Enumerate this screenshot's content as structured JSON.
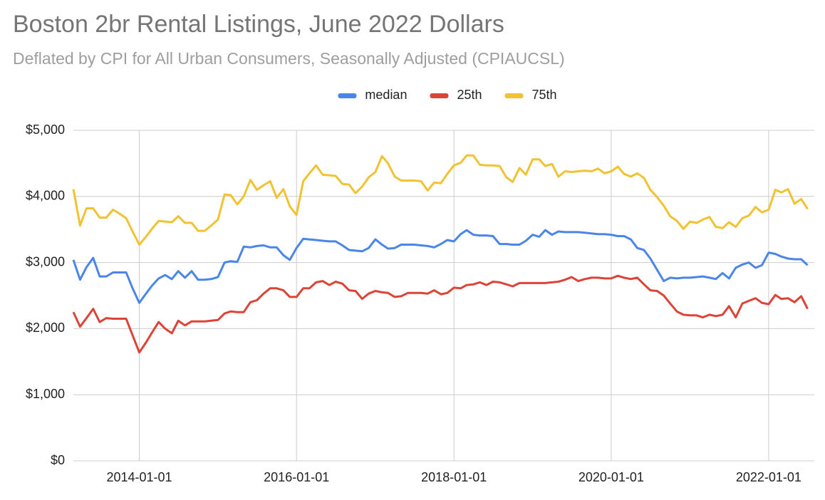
{
  "chart_data": {
    "type": "line",
    "title": "Boston 2br Rental Listings, June 2022 Dollars",
    "subtitle": "Deflated by CPI for All Urban Consumers, Seasonally Adjusted (CPIAUCSL)",
    "x": [
      "2013-03-01",
      "2013-04-01",
      "2013-05-01",
      "2013-06-01",
      "2013-07-01",
      "2013-08-01",
      "2013-09-01",
      "2013-10-01",
      "2013-11-01",
      "2013-12-01",
      "2014-01-01",
      "2014-02-01",
      "2014-03-01",
      "2014-04-01",
      "2014-05-01",
      "2014-06-01",
      "2014-07-01",
      "2014-08-01",
      "2014-09-01",
      "2014-10-01",
      "2014-11-01",
      "2014-12-01",
      "2015-01-01",
      "2015-02-01",
      "2015-03-01",
      "2015-04-01",
      "2015-05-01",
      "2015-06-01",
      "2015-07-01",
      "2015-08-01",
      "2015-09-01",
      "2015-10-01",
      "2015-11-01",
      "2015-12-01",
      "2016-01-01",
      "2016-02-01",
      "2016-03-01",
      "2016-04-01",
      "2016-05-01",
      "2016-06-01",
      "2016-07-01",
      "2016-08-01",
      "2016-09-01",
      "2016-10-01",
      "2016-11-01",
      "2016-12-01",
      "2017-01-01",
      "2017-02-01",
      "2017-03-01",
      "2017-04-01",
      "2017-05-01",
      "2017-06-01",
      "2017-07-01",
      "2017-08-01",
      "2017-09-01",
      "2017-10-01",
      "2017-11-01",
      "2017-12-01",
      "2018-01-01",
      "2018-02-01",
      "2018-03-01",
      "2018-04-01",
      "2018-05-01",
      "2018-06-01",
      "2018-07-01",
      "2018-08-01",
      "2018-09-01",
      "2018-10-01",
      "2018-11-01",
      "2018-12-01",
      "2019-01-01",
      "2019-02-01",
      "2019-03-01",
      "2019-04-01",
      "2019-05-01",
      "2019-06-01",
      "2019-07-01",
      "2019-08-01",
      "2019-09-01",
      "2019-10-01",
      "2019-11-01",
      "2019-12-01",
      "2020-01-01",
      "2020-02-01",
      "2020-03-01",
      "2020-04-01",
      "2020-05-01",
      "2020-06-01",
      "2020-07-01",
      "2020-08-01",
      "2020-09-01",
      "2020-10-01",
      "2020-11-01",
      "2020-12-01",
      "2021-01-01",
      "2021-02-01",
      "2021-03-01",
      "2021-04-01",
      "2021-05-01",
      "2021-06-01",
      "2021-07-01",
      "2021-08-01",
      "2021-09-01",
      "2021-10-01",
      "2021-11-01",
      "2021-12-01",
      "2022-01-01",
      "2022-02-01",
      "2022-03-01",
      "2022-04-01",
      "2022-05-01",
      "2022-06-01",
      "2022-07-01"
    ],
    "series": [
      {
        "name": "median",
        "color": "#4a86e8",
        "values": [
          3040,
          2740,
          2930,
          3070,
          2790,
          2790,
          2850,
          2850,
          2850,
          2610,
          2390,
          2530,
          2650,
          2760,
          2810,
          2750,
          2870,
          2770,
          2870,
          2740,
          2740,
          2750,
          2780,
          3000,
          3020,
          3010,
          3240,
          3230,
          3250,
          3260,
          3230,
          3230,
          3110,
          3040,
          3220,
          3360,
          3350,
          3340,
          3330,
          3320,
          3320,
          3260,
          3190,
          3180,
          3170,
          3220,
          3350,
          3270,
          3210,
          3220,
          3270,
          3270,
          3270,
          3260,
          3250,
          3230,
          3280,
          3340,
          3320,
          3430,
          3490,
          3420,
          3410,
          3410,
          3400,
          3280,
          3280,
          3270,
          3270,
          3330,
          3420,
          3390,
          3490,
          3420,
          3470,
          3460,
          3460,
          3460,
          3450,
          3440,
          3430,
          3430,
          3420,
          3400,
          3400,
          3350,
          3220,
          3190,
          3060,
          2890,
          2720,
          2770,
          2760,
          2770,
          2770,
          2780,
          2790,
          2770,
          2750,
          2840,
          2760,
          2920,
          2970,
          3000,
          2920,
          2960,
          3150,
          3130,
          3090,
          3060,
          3050,
          3050,
          2960
        ]
      },
      {
        "name": "25th",
        "color": "#db4437",
        "values": [
          2250,
          2030,
          2160,
          2300,
          2100,
          2160,
          2150,
          2150,
          2150,
          1900,
          1640,
          1790,
          1940,
          2100,
          2000,
          1930,
          2120,
          2050,
          2110,
          2110,
          2110,
          2120,
          2130,
          2230,
          2260,
          2250,
          2250,
          2400,
          2430,
          2530,
          2610,
          2610,
          2580,
          2480,
          2480,
          2610,
          2610,
          2700,
          2720,
          2660,
          2710,
          2680,
          2580,
          2570,
          2450,
          2530,
          2570,
          2550,
          2540,
          2480,
          2490,
          2540,
          2540,
          2540,
          2530,
          2580,
          2520,
          2540,
          2620,
          2610,
          2660,
          2670,
          2700,
          2660,
          2710,
          2700,
          2670,
          2640,
          2690,
          2690,
          2690,
          2690,
          2690,
          2700,
          2710,
          2740,
          2780,
          2720,
          2750,
          2770,
          2770,
          2760,
          2760,
          2800,
          2770,
          2750,
          2770,
          2670,
          2580,
          2570,
          2500,
          2380,
          2260,
          2210,
          2200,
          2200,
          2170,
          2210,
          2190,
          2210,
          2340,
          2170,
          2380,
          2420,
          2460,
          2390,
          2370,
          2510,
          2450,
          2460,
          2400,
          2490,
          2300
        ]
      },
      {
        "name": "75th",
        "color": "#f1c232",
        "values": [
          4110,
          3560,
          3820,
          3820,
          3680,
          3680,
          3800,
          3740,
          3670,
          3470,
          3270,
          3390,
          3510,
          3630,
          3620,
          3610,
          3700,
          3600,
          3600,
          3480,
          3480,
          3560,
          3650,
          4030,
          4020,
          3880,
          4000,
          4250,
          4100,
          4170,
          4230,
          3980,
          4110,
          3850,
          3720,
          4230,
          4350,
          4470,
          4330,
          4320,
          4310,
          4190,
          4180,
          4050,
          4150,
          4290,
          4370,
          4610,
          4500,
          4300,
          4240,
          4240,
          4240,
          4230,
          4090,
          4210,
          4200,
          4340,
          4470,
          4510,
          4620,
          4620,
          4480,
          4470,
          4470,
          4460,
          4290,
          4220,
          4430,
          4330,
          4560,
          4560,
          4460,
          4490,
          4300,
          4380,
          4370,
          4380,
          4390,
          4380,
          4420,
          4350,
          4380,
          4450,
          4340,
          4300,
          4350,
          4280,
          4100,
          3990,
          3860,
          3700,
          3630,
          3510,
          3620,
          3600,
          3650,
          3690,
          3540,
          3520,
          3610,
          3540,
          3670,
          3710,
          3840,
          3760,
          3800,
          4100,
          4060,
          4110,
          3890,
          3960,
          3810
        ]
      }
    ],
    "xlim": [
      "2013-03-01",
      "2022-08-01"
    ],
    "xticks": [
      "2014-01-01",
      "2016-01-01",
      "2018-01-01",
      "2020-01-01",
      "2022-01-01"
    ],
    "ylim": [
      0,
      5000
    ],
    "yticks": [
      {
        "value": 0,
        "label": "$0"
      },
      {
        "value": 1000,
        "label": "$1,000"
      },
      {
        "value": 2000,
        "label": "$2,000"
      },
      {
        "value": 3000,
        "label": "$3,000"
      },
      {
        "value": 4000,
        "label": "$4,000"
      },
      {
        "value": 5000,
        "label": "$5,000"
      }
    ],
    "grid": true,
    "legend": "top"
  }
}
